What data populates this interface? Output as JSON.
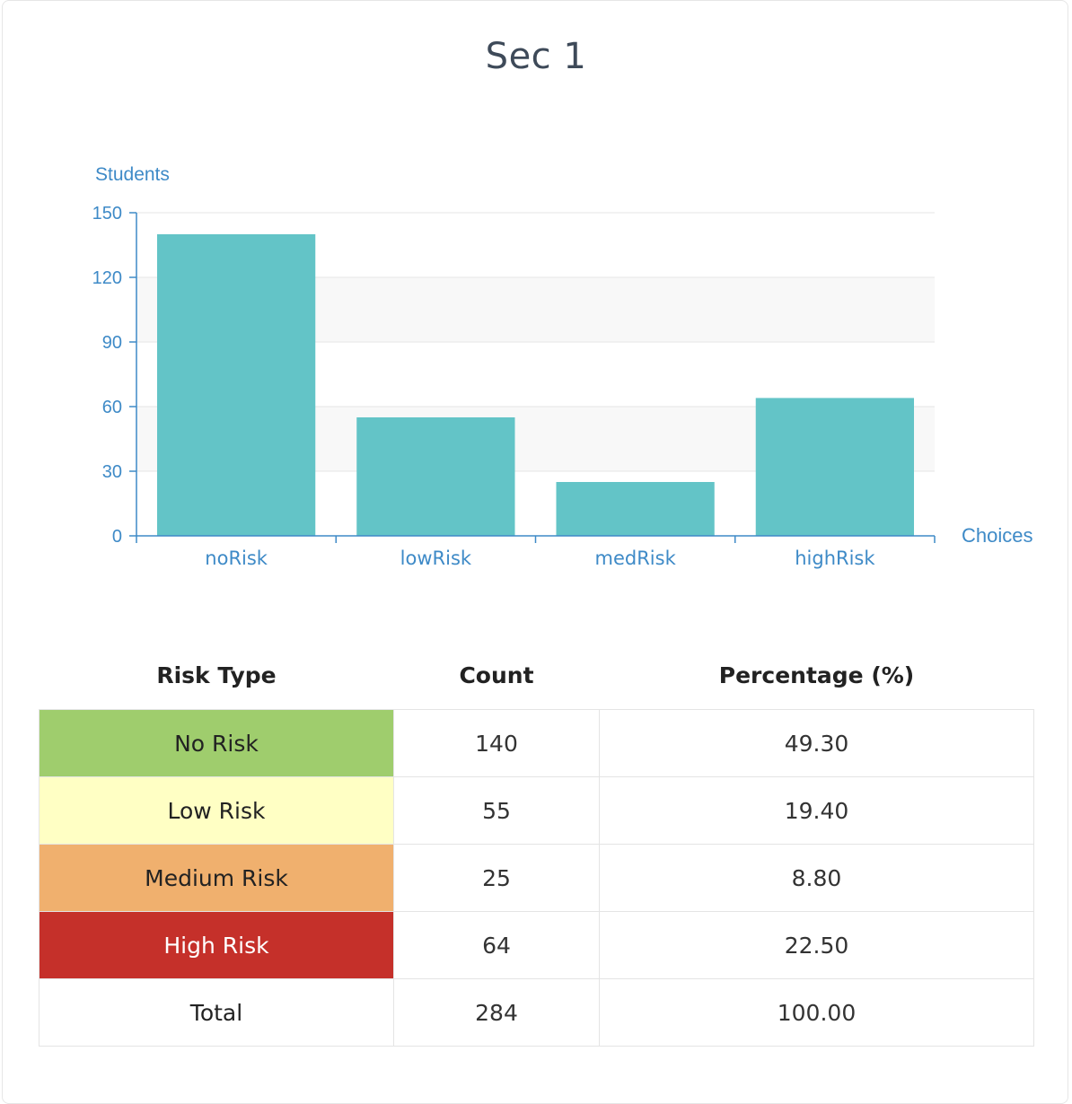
{
  "title": "Sec 1",
  "chart_data": {
    "type": "bar",
    "title": "Sec 1",
    "ylabel": "Students",
    "xlabel": "Choices",
    "categories": [
      "noRisk",
      "lowRisk",
      "medRisk",
      "highRisk"
    ],
    "values": [
      140,
      55,
      25,
      64
    ],
    "ylim": [
      0,
      150
    ],
    "yticks": [
      0,
      30,
      60,
      90,
      120,
      150
    ],
    "bar_color": "#63c4c7",
    "axis_color": "#3e8ac7",
    "grid": true
  },
  "table": {
    "headers": [
      "Risk Type",
      "Count",
      "Percentage (%)"
    ],
    "rows": [
      {
        "label": "No Risk",
        "count": "140",
        "percentage": "49.30",
        "bg": "#9fcd6d",
        "fg": "#222222"
      },
      {
        "label": "Low Risk",
        "count": "55",
        "percentage": "19.40",
        "bg": "#ffffc4",
        "fg": "#222222"
      },
      {
        "label": "Medium Risk",
        "count": "25",
        "percentage": "8.80",
        "bg": "#f0b06e",
        "fg": "#222222"
      },
      {
        "label": "High Risk",
        "count": "64",
        "percentage": "22.50",
        "bg": "#c5302a",
        "fg": "#ffffff"
      },
      {
        "label": "Total",
        "count": "284",
        "percentage": "100.00",
        "bg": "#ffffff",
        "fg": "#222222"
      }
    ]
  }
}
